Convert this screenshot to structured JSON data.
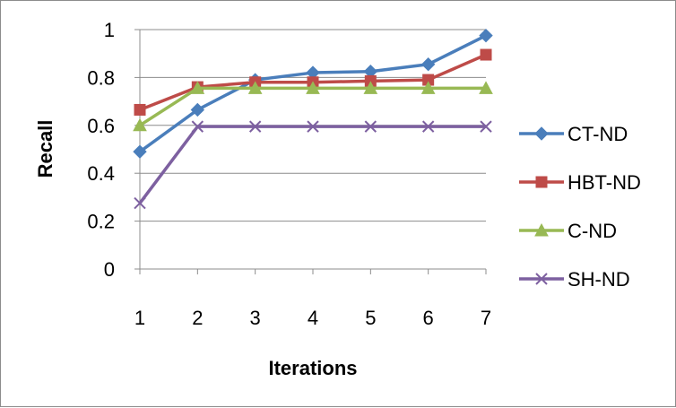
{
  "chart_data": {
    "type": "line",
    "title": "",
    "xlabel": "Iterations",
    "ylabel": "Recall",
    "x": [
      1,
      2,
      3,
      4,
      5,
      6,
      7
    ],
    "x_tick_labels": [
      "1",
      "2",
      "3",
      "4",
      "5",
      "6",
      "7"
    ],
    "ylim": [
      0,
      1
    ],
    "y_tick_labels": [
      "0",
      "0.2",
      "0.4",
      "0.6",
      "0.8",
      "1"
    ],
    "y_ticks": [
      0,
      0.2,
      0.4,
      0.6,
      0.8,
      1
    ],
    "grid": "horizontal",
    "legend_position": "right",
    "series": [
      {
        "name": "CT-ND",
        "color": "#4a7ebb",
        "marker": "diamond",
        "values": [
          0.49,
          0.665,
          0.79,
          0.82,
          0.825,
          0.855,
          0.975
        ]
      },
      {
        "name": "HBT-ND",
        "color": "#be4b48",
        "marker": "square",
        "values": [
          0.665,
          0.76,
          0.78,
          0.78,
          0.785,
          0.79,
          0.895
        ]
      },
      {
        "name": "C-ND",
        "color": "#98b954",
        "marker": "triangle",
        "values": [
          0.6,
          0.755,
          0.755,
          0.755,
          0.755,
          0.755,
          0.755
        ]
      },
      {
        "name": "SH-ND",
        "color": "#7d60a0",
        "marker": "x",
        "values": [
          0.275,
          0.595,
          0.595,
          0.595,
          0.595,
          0.595,
          0.595
        ]
      }
    ]
  }
}
